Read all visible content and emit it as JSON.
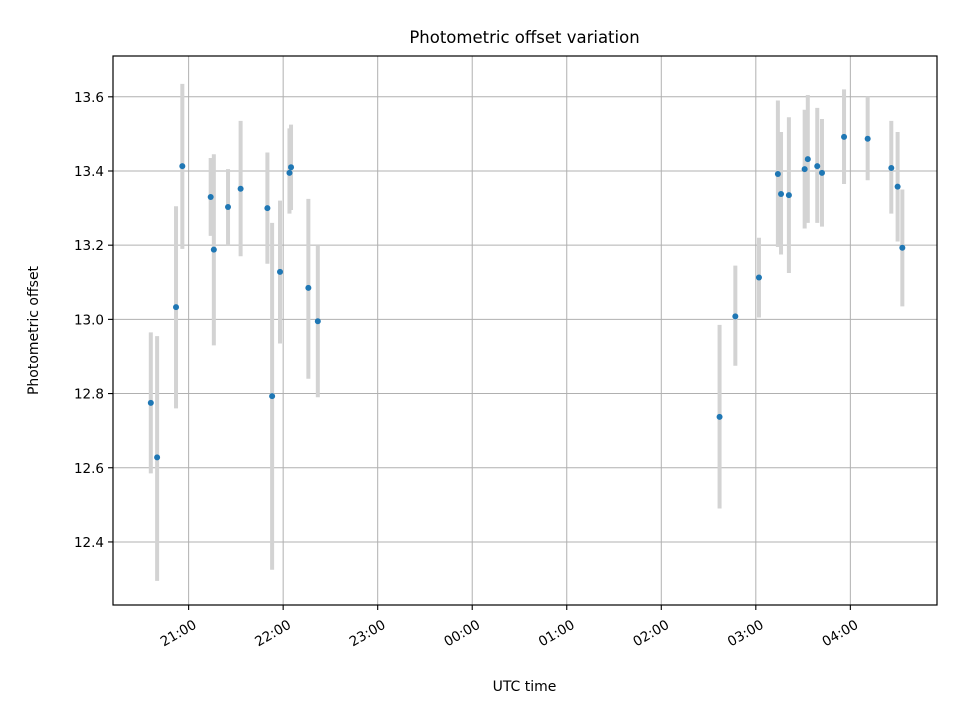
{
  "chart_data": {
    "type": "scatter",
    "title": "Photometric offset variation",
    "xlabel": "UTC time",
    "ylabel": "Photometric offset",
    "xlim": [
      "2000-01-01T20:12",
      "2000-01-02T04:55"
    ],
    "ylim": [
      12.23,
      13.71
    ],
    "x_ticks": [
      {
        "t": "2000-01-01T21:00",
        "label": "21:00"
      },
      {
        "t": "2000-01-01T22:00",
        "label": "22:00"
      },
      {
        "t": "2000-01-01T23:00",
        "label": "23:00"
      },
      {
        "t": "2000-01-02T00:00",
        "label": "00:00"
      },
      {
        "t": "2000-01-02T01:00",
        "label": "01:00"
      },
      {
        "t": "2000-01-02T02:00",
        "label": "02:00"
      },
      {
        "t": "2000-01-02T03:00",
        "label": "03:00"
      },
      {
        "t": "2000-01-02T04:00",
        "label": "04:00"
      }
    ],
    "y_ticks": [
      12.4,
      12.6,
      12.8,
      13.0,
      13.2,
      13.4,
      13.6
    ],
    "grid": true,
    "point_color": "#1f77b4",
    "errorbar_color": "#d3d3d3",
    "points": [
      {
        "t": "2000-01-01T20:36",
        "y": 12.775,
        "lo": 12.585,
        "hi": 12.965
      },
      {
        "t": "2000-01-01T20:40",
        "y": 12.628,
        "lo": 12.295,
        "hi": 12.955
      },
      {
        "t": "2000-01-01T20:52",
        "y": 13.033,
        "lo": 12.76,
        "hi": 13.305
      },
      {
        "t": "2000-01-01T20:56",
        "y": 13.413,
        "lo": 13.19,
        "hi": 13.635
      },
      {
        "t": "2000-01-01T21:14",
        "y": 13.33,
        "lo": 13.225,
        "hi": 13.435
      },
      {
        "t": "2000-01-01T21:16",
        "y": 13.188,
        "lo": 12.93,
        "hi": 13.445
      },
      {
        "t": "2000-01-01T21:25",
        "y": 13.303,
        "lo": 13.2,
        "hi": 13.405
      },
      {
        "t": "2000-01-01T21:33",
        "y": 13.352,
        "lo": 13.17,
        "hi": 13.535
      },
      {
        "t": "2000-01-01T21:50",
        "y": 13.3,
        "lo": 13.15,
        "hi": 13.45
      },
      {
        "t": "2000-01-01T21:53",
        "y": 12.793,
        "lo": 12.325,
        "hi": 13.26
      },
      {
        "t": "2000-01-01T21:58",
        "y": 13.128,
        "lo": 12.935,
        "hi": 13.32
      },
      {
        "t": "2000-01-01T22:04",
        "y": 13.395,
        "lo": 13.285,
        "hi": 13.515
      },
      {
        "t": "2000-01-01T22:05",
        "y": 13.41,
        "lo": 13.295,
        "hi": 13.525
      },
      {
        "t": "2000-01-01T22:16",
        "y": 13.085,
        "lo": 12.84,
        "hi": 13.325
      },
      {
        "t": "2000-01-01T22:22",
        "y": 12.995,
        "lo": 12.79,
        "hi": 13.2
      },
      {
        "t": "2000-01-02T02:37",
        "y": 12.737,
        "lo": 12.49,
        "hi": 12.985
      },
      {
        "t": "2000-01-02T02:47",
        "y": 13.008,
        "lo": 12.875,
        "hi": 13.145
      },
      {
        "t": "2000-01-02T03:02",
        "y": 13.113,
        "lo": 13.005,
        "hi": 13.22
      },
      {
        "t": "2000-01-02T03:14",
        "y": 13.392,
        "lo": 13.195,
        "hi": 13.59
      },
      {
        "t": "2000-01-02T03:16",
        "y": 13.338,
        "lo": 13.175,
        "hi": 13.505
      },
      {
        "t": "2000-01-02T03:21",
        "y": 13.335,
        "lo": 13.125,
        "hi": 13.545
      },
      {
        "t": "2000-01-02T03:31",
        "y": 13.405,
        "lo": 13.245,
        "hi": 13.565
      },
      {
        "t": "2000-01-02T03:33",
        "y": 13.432,
        "lo": 13.26,
        "hi": 13.605
      },
      {
        "t": "2000-01-02T03:39",
        "y": 13.413,
        "lo": 13.26,
        "hi": 13.57
      },
      {
        "t": "2000-01-02T03:42",
        "y": 13.395,
        "lo": 13.25,
        "hi": 13.54
      },
      {
        "t": "2000-01-02T03:56",
        "y": 13.492,
        "lo": 13.365,
        "hi": 13.62
      },
      {
        "t": "2000-01-02T04:11",
        "y": 13.487,
        "lo": 13.375,
        "hi": 13.6
      },
      {
        "t": "2000-01-02T04:26",
        "y": 13.408,
        "lo": 13.285,
        "hi": 13.535
      },
      {
        "t": "2000-01-02T04:30",
        "y": 13.358,
        "lo": 13.21,
        "hi": 13.505
      },
      {
        "t": "2000-01-02T04:33",
        "y": 13.193,
        "lo": 13.035,
        "hi": 13.35
      }
    ]
  }
}
